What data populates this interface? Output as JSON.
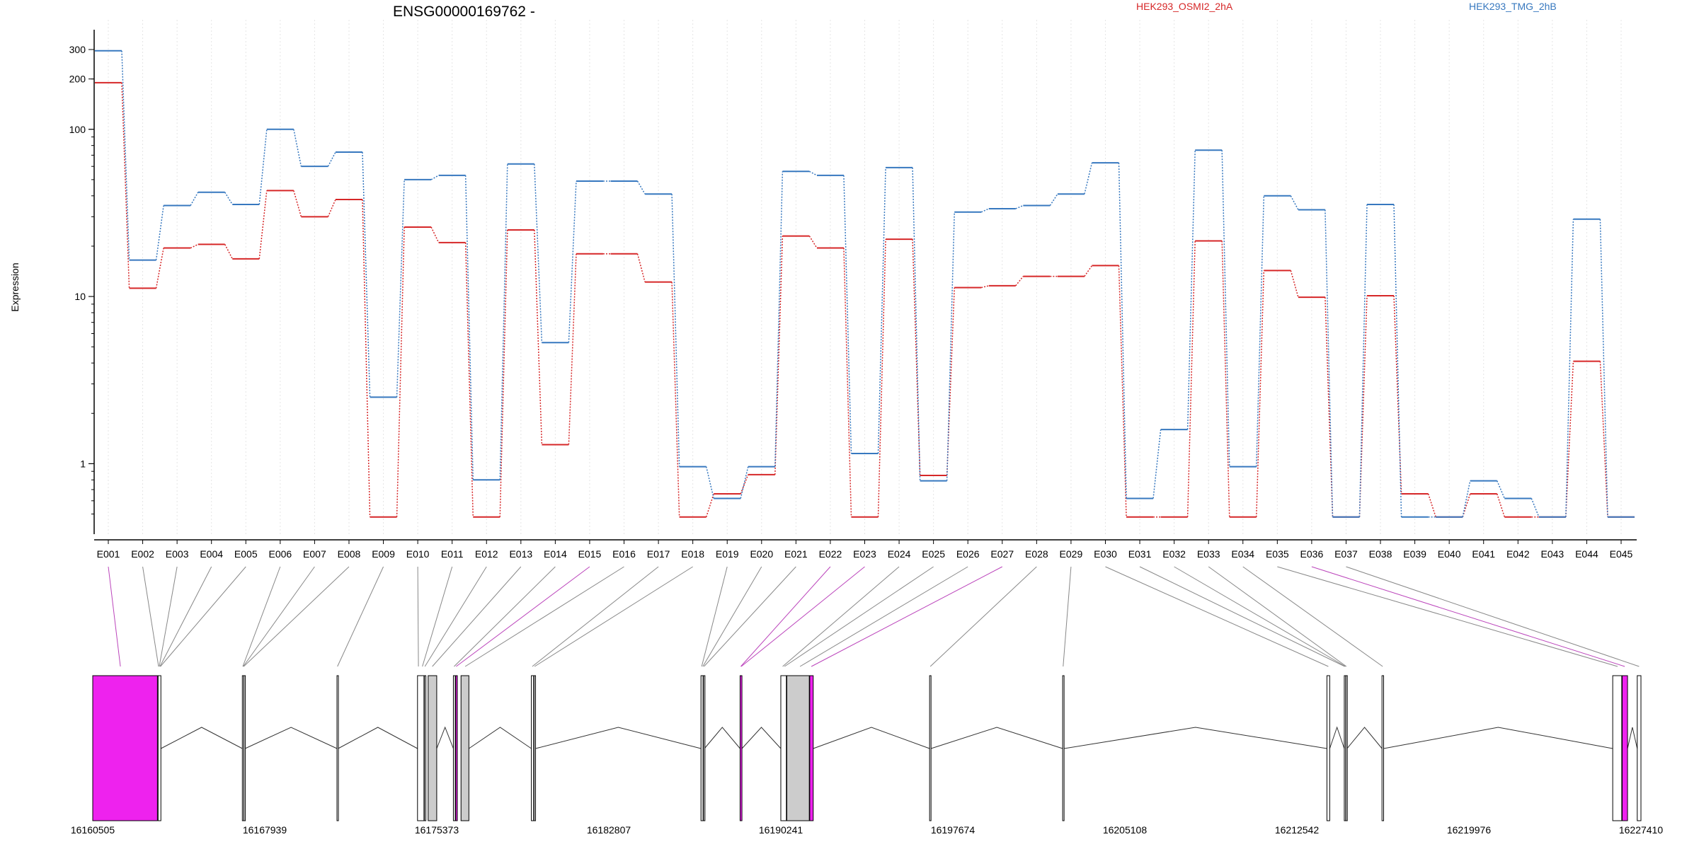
{
  "colors": {
    "series_a": "#d62728",
    "series_b": "#3778bf",
    "highlight_exon": "#ee22ee",
    "gray_exon": "#cccccc",
    "link_gray": "#888888",
    "link_magenta": "#bb44bb",
    "grid": "#e5e5e5"
  },
  "chart_data": {
    "type": "line",
    "title": "ENSG00000169762 -",
    "ylabel": "Expression",
    "yscale": "log",
    "ylim": [
      0.43,
      300
    ],
    "yticks": [
      "1",
      "10",
      "100",
      "200",
      "300"
    ],
    "categories": [
      "E001",
      "E002",
      "E003",
      "E004",
      "E005",
      "E006",
      "E007",
      "E008",
      "E009",
      "E010",
      "E011",
      "E012",
      "E013",
      "E014",
      "E015",
      "E016",
      "E017",
      "E018",
      "E019",
      "E020",
      "E021",
      "E022",
      "E023",
      "E024",
      "E025",
      "E026",
      "E027",
      "E028",
      "E029",
      "E030",
      "E031",
      "E032",
      "E033",
      "E034",
      "E035",
      "E036",
      "E037",
      "E038",
      "E039",
      "E040",
      "E041",
      "E042",
      "E043",
      "E044",
      "E045"
    ],
    "series": [
      {
        "name": "HEK293_OSMI2_2hA",
        "color": "#d62728",
        "values": [
          190,
          11.2,
          19.5,
          20.5,
          16.8,
          43,
          30,
          38,
          0.48,
          26,
          21,
          0.48,
          25,
          1.3,
          18,
          18,
          12.2,
          0.48,
          0.66,
          0.86,
          23,
          19.5,
          0.48,
          22,
          0.85,
          11.3,
          11.6,
          13.2,
          13.2,
          15.3,
          0.48,
          0.48,
          21.5,
          0.48,
          14.3,
          9.9,
          0.48,
          10.1,
          0.66,
          0.48,
          0.66,
          0.48,
          0.48,
          4.1,
          0.48
        ]
      },
      {
        "name": "HEK293_TMG_2hB",
        "color": "#3778bf",
        "values": [
          295,
          16.5,
          35,
          42,
          35.5,
          100,
          60,
          73,
          2.5,
          50,
          53,
          0.8,
          62,
          5.3,
          49,
          49,
          41,
          0.96,
          0.62,
          0.96,
          56,
          53,
          1.15,
          59,
          0.79,
          32,
          33.5,
          35,
          41,
          63,
          0.62,
          1.6,
          75,
          0.96,
          40,
          33,
          0.48,
          35.5,
          0.48,
          0.48,
          0.79,
          0.62,
          0.48,
          29,
          0.48
        ]
      }
    ],
    "gene_model": {
      "coord_ticks": [
        "16160505",
        "16167939",
        "16175373",
        "16182807",
        "16190241",
        "16197674",
        "16205108",
        "16212542",
        "16219976",
        "16227410"
      ],
      "coord_range": [
        16160505,
        16227410
      ],
      "exons": [
        {
          "start": 16160505,
          "end": 16163300,
          "fill": "magenta"
        },
        {
          "start": 16163330,
          "end": 16163450,
          "fill": "white"
        },
        {
          "start": 16166970,
          "end": 16167020,
          "fill": "white"
        },
        {
          "start": 16167040,
          "end": 16167090,
          "fill": "white"
        },
        {
          "start": 16171060,
          "end": 16171110,
          "fill": "white"
        },
        {
          "start": 16174540,
          "end": 16174820,
          "fill": "white"
        },
        {
          "start": 16174840,
          "end": 16174870,
          "fill": "white"
        },
        {
          "start": 16175000,
          "end": 16175370,
          "fill": "gray"
        },
        {
          "start": 16176090,
          "end": 16176170,
          "fill": "white"
        },
        {
          "start": 16176190,
          "end": 16176260,
          "fill": "magenta"
        },
        {
          "start": 16176420,
          "end": 16176760,
          "fill": "gray"
        },
        {
          "start": 16179460,
          "end": 16179560,
          "fill": "white"
        },
        {
          "start": 16179580,
          "end": 16179640,
          "fill": "white"
        },
        {
          "start": 16186790,
          "end": 16186880,
          "fill": "white"
        },
        {
          "start": 16186900,
          "end": 16186940,
          "fill": "white"
        },
        {
          "start": 16188480,
          "end": 16188560,
          "fill": "magenta"
        },
        {
          "start": 16190240,
          "end": 16190480,
          "fill": "white"
        },
        {
          "start": 16190500,
          "end": 16191470,
          "fill": "gray"
        },
        {
          "start": 16191490,
          "end": 16191640,
          "fill": "magenta"
        },
        {
          "start": 16196670,
          "end": 16196730,
          "fill": "white"
        },
        {
          "start": 16202420,
          "end": 16202480,
          "fill": "white"
        },
        {
          "start": 16213840,
          "end": 16213960,
          "fill": "white"
        },
        {
          "start": 16214590,
          "end": 16214640,
          "fill": "white"
        },
        {
          "start": 16214660,
          "end": 16214710,
          "fill": "white"
        },
        {
          "start": 16216220,
          "end": 16216290,
          "fill": "white"
        },
        {
          "start": 16226190,
          "end": 16226580,
          "fill": "white"
        },
        {
          "start": 16226600,
          "end": 16226830,
          "fill": "magenta"
        },
        {
          "start": 16227250,
          "end": 16227410,
          "fill": "white"
        }
      ],
      "exon_bin_links": [
        16161700,
        16163350,
        16163380,
        16163410,
        16163430,
        16166990,
        16167010,
        16167030,
        16171080,
        16174580,
        16174750,
        16174860,
        16175180,
        16176120,
        16176210,
        16176600,
        16179500,
        16179600,
        16186820,
        16186870,
        16186920,
        16188510,
        16188530,
        16190320,
        16190400,
        16191070,
        16191560,
        16196700,
        16202440,
        16213900,
        16214610,
        16214640,
        16214680,
        16216250,
        16226400,
        16226710,
        16227330
      ],
      "highlight_links": [
        0,
        14,
        21,
        22,
        26,
        35
      ]
    }
  }
}
